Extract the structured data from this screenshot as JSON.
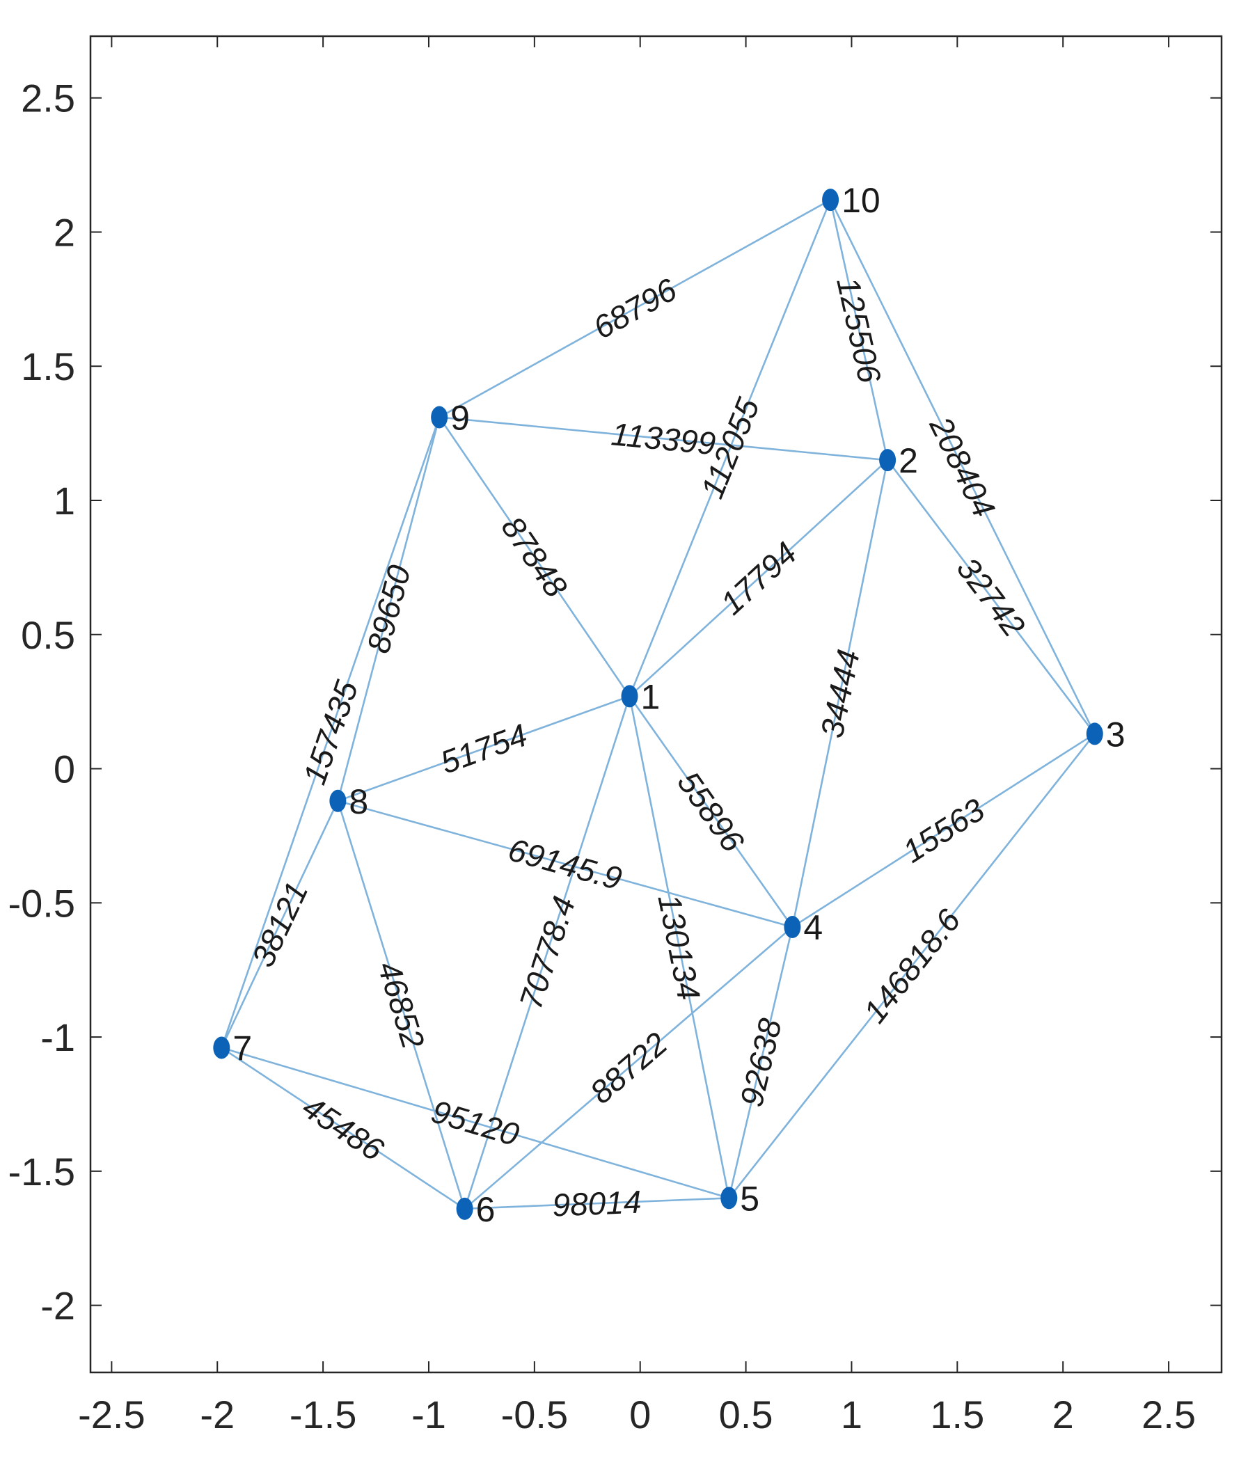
{
  "chart_data": {
    "type": "graph",
    "xlim": [
      -2.6,
      2.75
    ],
    "ylim": [
      -2.25,
      2.73
    ],
    "xticks": [
      -2.5,
      -2,
      -1.5,
      -1,
      -0.5,
      0,
      0.5,
      1,
      1.5,
      2,
      2.5
    ],
    "yticks": [
      -2,
      -1.5,
      -1,
      -0.5,
      0,
      0.5,
      1,
      1.5,
      2,
      2.5
    ],
    "xtick_labels": [
      "-2.5",
      "-2",
      "-1.5",
      "-1",
      "-0.5",
      "0",
      "0.5",
      "1",
      "1.5",
      "2",
      "2.5"
    ],
    "ytick_labels": [
      "-2",
      "-1.5",
      "-1",
      "-0.5",
      "0",
      "0.5",
      "1",
      "1.5",
      "2",
      "2.5"
    ],
    "colors": {
      "node": "#0b62b6",
      "edge": "#7fb3dc",
      "axis": "#262626"
    },
    "nodes": [
      {
        "id": "1",
        "x": -0.05,
        "y": 0.27
      },
      {
        "id": "2",
        "x": 1.17,
        "y": 1.15
      },
      {
        "id": "3",
        "x": 2.15,
        "y": 0.13
      },
      {
        "id": "4",
        "x": 0.72,
        "y": -0.59
      },
      {
        "id": "5",
        "x": 0.42,
        "y": -1.6
      },
      {
        "id": "6",
        "x": -0.83,
        "y": -1.64
      },
      {
        "id": "7",
        "x": -1.98,
        "y": -1.04
      },
      {
        "id": "8",
        "x": -1.43,
        "y": -0.12
      },
      {
        "id": "9",
        "x": -0.95,
        "y": 1.31
      },
      {
        "id": "10",
        "x": 0.9,
        "y": 2.12
      }
    ],
    "edges": [
      {
        "source": "9",
        "target": "10",
        "weight": "68796"
      },
      {
        "source": "10",
        "target": "2",
        "weight": "125506"
      },
      {
        "source": "10",
        "target": "3",
        "weight": "208404"
      },
      {
        "source": "10",
        "target": "1",
        "weight": "112055"
      },
      {
        "source": "9",
        "target": "2",
        "weight": "113399"
      },
      {
        "source": "9",
        "target": "1",
        "weight": "87848"
      },
      {
        "source": "9",
        "target": "8",
        "weight": "89650"
      },
      {
        "source": "9",
        "target": "7",
        "weight": "157435"
      },
      {
        "source": "2",
        "target": "1",
        "weight": "17794"
      },
      {
        "source": "2",
        "target": "3",
        "weight": "32742"
      },
      {
        "source": "2",
        "target": "4",
        "weight": "34444"
      },
      {
        "source": "1",
        "target": "8",
        "weight": "51754"
      },
      {
        "source": "1",
        "target": "4",
        "weight": "55896"
      },
      {
        "source": "1",
        "target": "5",
        "weight": "130134"
      },
      {
        "source": "1",
        "target": "6",
        "weight": "70778.4"
      },
      {
        "source": "3",
        "target": "4",
        "weight": "15563"
      },
      {
        "source": "3",
        "target": "5",
        "weight": "146818.6"
      },
      {
        "source": "8",
        "target": "4",
        "weight": "69145.9"
      },
      {
        "source": "8",
        "target": "7",
        "weight": "38121"
      },
      {
        "source": "8",
        "target": "6",
        "weight": "46852"
      },
      {
        "source": "4",
        "target": "6",
        "weight": "88722"
      },
      {
        "source": "4",
        "target": "5",
        "weight": "92638"
      },
      {
        "source": "7",
        "target": "6",
        "weight": "45486"
      },
      {
        "source": "7",
        "target": "5",
        "weight": "95120"
      },
      {
        "source": "6",
        "target": "5",
        "weight": "98014"
      }
    ]
  }
}
